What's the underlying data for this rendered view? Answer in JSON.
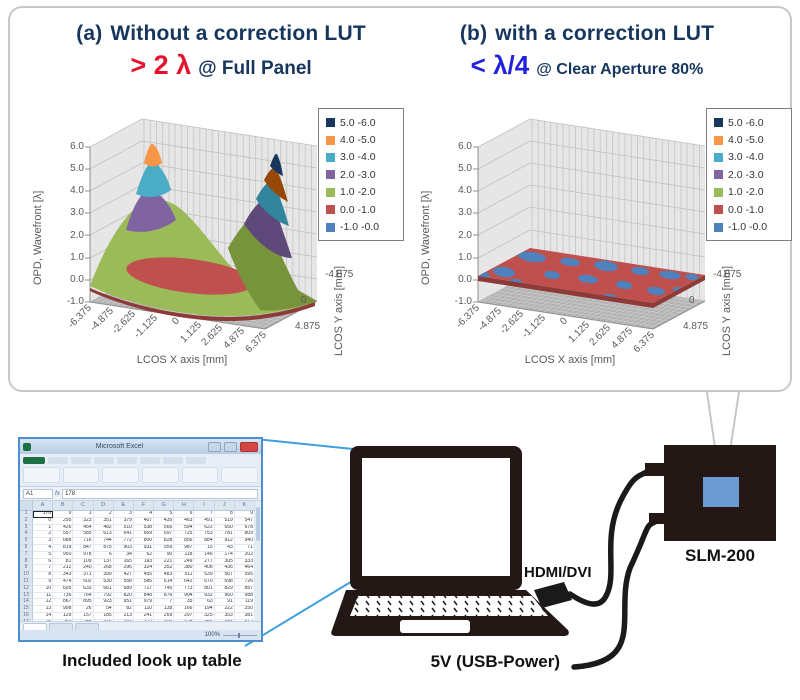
{
  "panel": {
    "border_color": "#C8C8C8",
    "caption_a": {
      "index": "(a)",
      "title": "Without a correction LUT",
      "metric": "> 2 λ",
      "qualifier": "@ Full Panel",
      "metric_color": "#E8112D",
      "title_color": "#17365D"
    },
    "caption_b": {
      "index": "(b)",
      "title": "with a correction LUT",
      "metric": "< λ/4",
      "qualifier": "@ Clear Aperture 80%",
      "metric_color": "#2121DE",
      "title_color": "#17365D"
    }
  },
  "chart_data": [
    {
      "type": "surface3d",
      "panel_label": "(a)",
      "title": "Without a correction LUT",
      "annotation": "> 2 λ @ Full Panel",
      "zlabel": "OPD, Wavefront [λ]",
      "xlabel": "LCOS X axis [mm]",
      "ylabel": "LCOS Y axis [mm]",
      "zlim": [
        -1.0,
        6.0
      ],
      "z_ticks": [
        "6.0",
        "5.0",
        "4.0",
        "3.0",
        "2.0",
        "1.0",
        "0.0",
        "-1.0"
      ],
      "x_ticks": [
        "-6.375",
        "-4.875",
        "-2.625",
        "-1.125",
        "0",
        "1.125",
        "2.625",
        "4.875",
        "6.375"
      ],
      "y_ticks": [
        "-4.875",
        "0",
        "4.875"
      ],
      "legend": [
        {
          "label": "5.0 -6.0",
          "color": "#17375E"
        },
        {
          "label": "4.0 -5.0",
          "color": "#F79646"
        },
        {
          "label": "3.0 -4.0",
          "color": "#4BACC6"
        },
        {
          "label": "2.0 -3.0",
          "color": "#8064A2"
        },
        {
          "label": "1.0 -2.0",
          "color": "#9BBB59"
        },
        {
          "label": "0.0 -1.0",
          "color": "#C0504D"
        },
        {
          "label": "-1.0 -0.0",
          "color": "#4F81BD"
        }
      ],
      "surface_summary": {
        "shape": "saddle",
        "z_min": 0.3,
        "z_max": 5.4,
        "peaks": [
          {
            "x": -6.375,
            "y": -4.875,
            "z": 5.2
          },
          {
            "x": 6.375,
            "y": 4.875,
            "z": 5.4
          }
        ],
        "valley": {
          "x": 0,
          "y": 0,
          "z": 0.4
        }
      }
    },
    {
      "type": "surface3d",
      "panel_label": "(b)",
      "title": "with a correction LUT",
      "annotation": "< λ/4 @ Clear Aperture 80%",
      "zlabel": "OPD, Wavefront [λ]",
      "xlabel": "LCOS X axis [mm]",
      "ylabel": "LCOS Y axis [mm]",
      "zlim": [
        -1.0,
        6.0
      ],
      "z_ticks": [
        "6.0",
        "5.0",
        "4.0",
        "3.0",
        "2.0",
        "1.0",
        "0.0",
        "-1.0"
      ],
      "x_ticks": [
        "-6.375",
        "-4.875",
        "-2.625",
        "-1.125",
        "0",
        "1.125",
        "2.625",
        "4.875",
        "6.375"
      ],
      "y_ticks": [
        "-4.875",
        "0",
        "4.875"
      ],
      "legend": [
        {
          "label": "5.0 -6.0",
          "color": "#17375E"
        },
        {
          "label": "4.0 -5.0",
          "color": "#F79646"
        },
        {
          "label": "3.0 -4.0",
          "color": "#4BACC6"
        },
        {
          "label": "2.0 -3.0",
          "color": "#8064A2"
        },
        {
          "label": "1.0 -2.0",
          "color": "#9BBB59"
        },
        {
          "label": "0.0 -1.0",
          "color": "#C0504D"
        },
        {
          "label": "-1.0 -0.0",
          "color": "#4F81BD"
        }
      ],
      "surface_summary": {
        "shape": "flat",
        "z_min": -0.3,
        "z_max": 0.3,
        "bands": [
          "0.0 -1.0",
          "-1.0 -0.0"
        ]
      }
    }
  ],
  "diagram": {
    "spreadsheet": {
      "window_title": "Microsoft Excel",
      "caption": "Included look up table",
      "name_box": "A1",
      "fx_label": "fx",
      "formula_bar": "178",
      "status_zoom": "100%",
      "columns": [
        "A",
        "B",
        "C",
        "D",
        "E",
        "F",
        "G",
        "H",
        "I",
        "J",
        "K"
      ],
      "rows": [
        [
          "178",
          "0",
          "1",
          "2",
          "3",
          "4",
          "5",
          "6",
          "7",
          "8",
          "9"
        ],
        [
          "0",
          295,
          323,
          351,
          379,
          407,
          435,
          463,
          491,
          519,
          547
        ],
        [
          "1",
          426,
          454,
          482,
          510,
          538,
          566,
          594,
          622,
          650,
          678
        ],
        [
          "2",
          557,
          585,
          613,
          641,
          669,
          697,
          725,
          753,
          781,
          809
        ],
        [
          "3",
          688,
          716,
          744,
          772,
          800,
          828,
          856,
          884,
          912,
          940
        ],
        [
          "4",
          819,
          847,
          875,
          903,
          931,
          959,
          987,
          15,
          43,
          71
        ],
        [
          "5",
          950,
          978,
          6,
          34,
          62,
          90,
          118,
          146,
          174,
          202
        ],
        [
          "6",
          81,
          109,
          137,
          165,
          193,
          221,
          249,
          277,
          305,
          333
        ],
        [
          "7",
          212,
          240,
          268,
          296,
          324,
          352,
          380,
          408,
          436,
          464
        ],
        [
          "8",
          343,
          371,
          399,
          427,
          455,
          483,
          511,
          539,
          567,
          595
        ],
        [
          "9",
          474,
          502,
          530,
          558,
          586,
          614,
          642,
          670,
          698,
          726
        ],
        [
          "10",
          605,
          633,
          661,
          689,
          717,
          745,
          773,
          801,
          829,
          857
        ],
        [
          "11",
          736,
          764,
          792,
          820,
          848,
          876,
          904,
          932,
          960,
          988
        ],
        [
          "12",
          867,
          895,
          923,
          951,
          979,
          7,
          35,
          63,
          91,
          119
        ],
        [
          "13",
          998,
          26,
          54,
          82,
          110,
          138,
          166,
          194,
          222,
          250
        ],
        [
          "14",
          129,
          157,
          185,
          213,
          241,
          269,
          297,
          325,
          353,
          381
        ],
        [
          "15",
          260,
          288,
          316,
          344,
          372,
          400,
          428,
          456,
          484,
          512
        ],
        [
          "16",
          391,
          419,
          447,
          475,
          503,
          531,
          559,
          587,
          615,
          643
        ],
        [
          "17",
          522,
          550,
          578,
          606,
          634,
          662,
          690,
          718,
          746,
          774
        ],
        [
          "18",
          653,
          681,
          709,
          737,
          765,
          793,
          821,
          849,
          877,
          905
        ]
      ]
    },
    "labels": {
      "hdmi": "HDMI/DVI",
      "power": "5V (USB-Power)",
      "device": "SLM-200"
    },
    "colors": {
      "ink": "#231815",
      "cable": "#1A1A1A",
      "device_panel": "#6C9BD2",
      "callout": "#3FA0DC",
      "beam": "#C6C6C6"
    }
  }
}
